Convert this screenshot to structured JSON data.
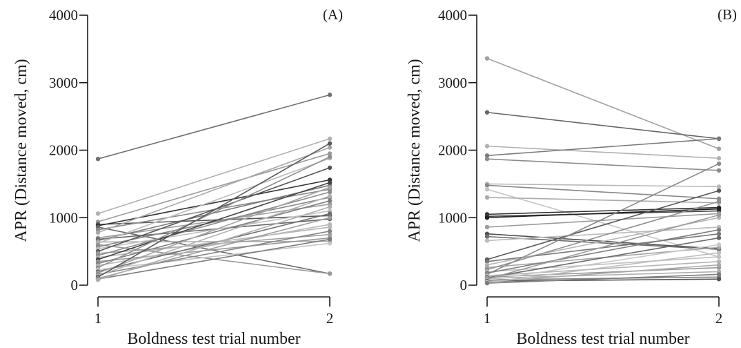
{
  "chart_data": [
    {
      "type": "line",
      "panel_label": "(A)",
      "xlabel": "Boldness test trial number",
      "ylabel": "APR (Distance moved, cm)",
      "x_ticks": [
        "1",
        "2"
      ],
      "y_ticks": [
        "0",
        "1000",
        "2000",
        "3000",
        "4000"
      ],
      "ylim": [
        0,
        4000
      ],
      "grid": false,
      "series": [
        {
          "values": [
            1870,
            2820
          ],
          "color": "#707070"
        },
        {
          "values": [
            1060,
            2170
          ],
          "color": "#b0b0b0"
        },
        {
          "values": [
            940,
            1950
          ],
          "color": "#9a9a9a"
        },
        {
          "values": [
            900,
            1030
          ],
          "color": "#555555"
        },
        {
          "values": [
            880,
            1560
          ],
          "color": "#333333"
        },
        {
          "values": [
            860,
            170
          ],
          "color": "#6a6a6a"
        },
        {
          "values": [
            820,
            1420
          ],
          "color": "#8a8a8a"
        },
        {
          "values": [
            780,
            2040
          ],
          "color": "#a8a8a8"
        },
        {
          "values": [
            700,
            1200
          ],
          "color": "#9e9e9e"
        },
        {
          "values": [
            680,
            980
          ],
          "color": "#666666"
        },
        {
          "values": [
            660,
            1480
          ],
          "color": "#7a7a7a"
        },
        {
          "values": [
            640,
            650
          ],
          "color": "#aaaaaa"
        },
        {
          "values": [
            620,
            1880
          ],
          "color": "#bbbbbb"
        },
        {
          "values": [
            600,
            170
          ],
          "color": "#999999"
        },
        {
          "values": [
            570,
            1300
          ],
          "color": "#888888"
        },
        {
          "values": [
            540,
            1100
          ],
          "color": "#c0c0c0"
        },
        {
          "values": [
            500,
            1740
          ],
          "color": "#555555"
        },
        {
          "values": [
            470,
            750
          ],
          "color": "#a0a0a0"
        },
        {
          "values": [
            440,
            1380
          ],
          "color": "#8c8c8c"
        },
        {
          "values": [
            410,
            860
          ],
          "color": "#b5b5b5"
        },
        {
          "values": [
            380,
            1520
          ],
          "color": "#444444"
        },
        {
          "values": [
            350,
            700
          ],
          "color": "#989898"
        },
        {
          "values": [
            320,
            1250
          ],
          "color": "#7e7e7e"
        },
        {
          "values": [
            290,
            900
          ],
          "color": "#b8b8b8"
        },
        {
          "values": [
            260,
            1900
          ],
          "color": "#909090"
        },
        {
          "values": [
            230,
            620
          ],
          "color": "#c5c5c5"
        },
        {
          "values": [
            200,
            1060
          ],
          "color": "#6e6e6e"
        },
        {
          "values": [
            180,
            1450
          ],
          "color": "#a5a5a5"
        },
        {
          "values": [
            160,
            800
          ],
          "color": "#858585"
        },
        {
          "values": [
            140,
            1320
          ],
          "color": "#b2b2b2"
        },
        {
          "values": [
            120,
            2100
          ],
          "color": "#5a5a5a"
        },
        {
          "values": [
            100,
            1000
          ],
          "color": "#9c9c9c"
        },
        {
          "values": [
            90,
            680
          ],
          "color": "#7c7c7c"
        },
        {
          "values": [
            80,
            1160
          ],
          "color": "#aeaeae"
        }
      ]
    },
    {
      "type": "line",
      "panel_label": "(B)",
      "xlabel": "Boldness test trial number",
      "ylabel": "APR (Distance moved, cm)",
      "x_ticks": [
        "1",
        "2"
      ],
      "y_ticks": [
        "0",
        "1000",
        "2000",
        "3000",
        "4000"
      ],
      "ylim": [
        0,
        4000
      ],
      "grid": false,
      "series": [
        {
          "values": [
            3360,
            2020
          ],
          "color": "#a0a0a0"
        },
        {
          "values": [
            2560,
            2170
          ],
          "color": "#666666"
        },
        {
          "values": [
            2060,
            1880
          ],
          "color": "#b0b0b0"
        },
        {
          "values": [
            1920,
            2170
          ],
          "color": "#7a7a7a"
        },
        {
          "values": [
            1870,
            1700
          ],
          "color": "#8c8c8c"
        },
        {
          "values": [
            1500,
            1460
          ],
          "color": "#b8b8b8"
        },
        {
          "values": [
            1480,
            1280
          ],
          "color": "#888888"
        },
        {
          "values": [
            1420,
            420
          ],
          "color": "#c5c5c5"
        },
        {
          "values": [
            1300,
            1220
          ],
          "color": "#aaaaaa"
        },
        {
          "values": [
            1050,
            1150
          ],
          "color": "#333333"
        },
        {
          "values": [
            1020,
            1100
          ],
          "color": "#444444"
        },
        {
          "values": [
            1000,
            1130
          ],
          "color": "#222222"
        },
        {
          "values": [
            860,
            1060
          ],
          "color": "#9a9a9a"
        },
        {
          "values": [
            760,
            540
          ],
          "color": "#505050"
        },
        {
          "values": [
            720,
            530
          ],
          "color": "#6e6e6e"
        },
        {
          "values": [
            660,
            860
          ],
          "color": "#bbbbbb"
        },
        {
          "values": [
            380,
            1400
          ],
          "color": "#5a5a5a"
        },
        {
          "values": [
            350,
            760
          ],
          "color": "#777777"
        },
        {
          "values": [
            300,
            1000
          ],
          "color": "#b5b5b5"
        },
        {
          "values": [
            260,
            560
          ],
          "color": "#a5a5a5"
        },
        {
          "values": [
            230,
            1240
          ],
          "color": "#909090"
        },
        {
          "values": [
            200,
            420
          ],
          "color": "#c0c0c0"
        },
        {
          "values": [
            180,
            820
          ],
          "color": "#7e7e7e"
        },
        {
          "values": [
            160,
            1800
          ],
          "color": "#8a8a8a"
        },
        {
          "values": [
            140,
            350
          ],
          "color": "#b2b2b2"
        },
        {
          "values": [
            120,
            260
          ],
          "color": "#989898"
        },
        {
          "values": [
            110,
            700
          ],
          "color": "#6a6a6a"
        },
        {
          "values": [
            100,
            200
          ],
          "color": "#aeaeae"
        },
        {
          "values": [
            90,
            1040
          ],
          "color": "#9c9c9c"
        },
        {
          "values": [
            80,
            120
          ],
          "color": "#858585"
        },
        {
          "values": [
            70,
            600
          ],
          "color": "#c8c8c8"
        },
        {
          "values": [
            60,
            90
          ],
          "color": "#555555"
        },
        {
          "values": [
            50,
            300
          ],
          "color": "#a8a8a8"
        },
        {
          "values": [
            40,
            480
          ],
          "color": "#bdbdbd"
        },
        {
          "values": [
            30,
            160
          ],
          "color": "#7c7c7c"
        }
      ]
    }
  ]
}
